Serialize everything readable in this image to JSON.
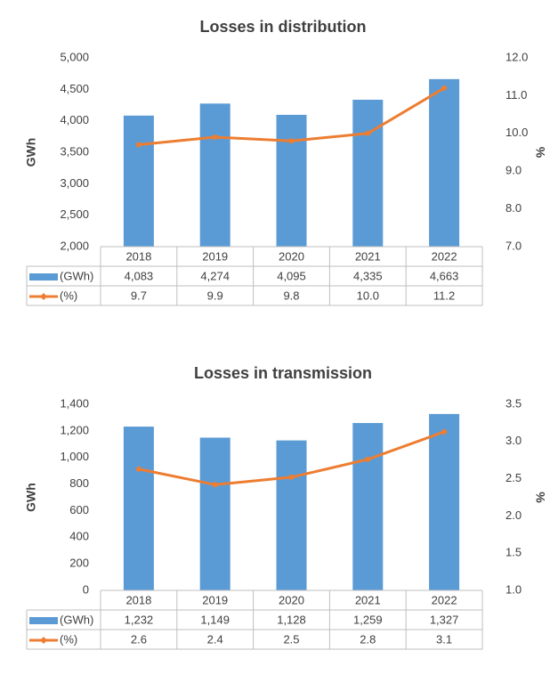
{
  "chart_data": [
    {
      "type": "combo",
      "title": "Losses in distribution",
      "y_label": "GWh",
      "y2_label": "%",
      "categories": [
        "2018",
        "2019",
        "2020",
        "2021",
        "2022"
      ],
      "series": [
        {
          "name": "(GWh)",
          "type": "bar",
          "color": "#5b9bd5",
          "values": [
            4083,
            4274,
            4095,
            4335,
            4663
          ],
          "value_labels": [
            "4,083",
            "4,274",
            "4,095",
            "4,335",
            "4,663"
          ]
        },
        {
          "name": "(%)",
          "type": "line",
          "axis": "y2",
          "color": "#ed7d31",
          "values": [
            9.7,
            9.9,
            9.8,
            10.0,
            11.2
          ],
          "value_labels": [
            "9.7",
            "9.9",
            "9.8",
            "10.0",
            "11.2"
          ]
        }
      ],
      "ylim": [
        2000,
        5000
      ],
      "yticks": [
        {
          "value": 2000,
          "label": "2,000"
        },
        {
          "value": 2500,
          "label": "2,500"
        },
        {
          "value": 3000,
          "label": "3,000"
        },
        {
          "value": 3500,
          "label": "3,500"
        },
        {
          "value": 4000,
          "label": "4,000"
        },
        {
          "value": 4500,
          "label": "4,500"
        },
        {
          "value": 5000,
          "label": "5,000"
        }
      ],
      "y2lim": [
        7,
        12
      ],
      "y2ticks": [
        {
          "value": 7,
          "label": "7.0"
        },
        {
          "value": 8,
          "label": "8.0"
        },
        {
          "value": 9,
          "label": "9.0"
        },
        {
          "value": 10,
          "label": "10.0"
        },
        {
          "value": 11,
          "label": "11.0"
        },
        {
          "value": 12,
          "label": "12.0"
        }
      ],
      "data_table": true
    },
    {
      "type": "combo",
      "title": "Losses in transmission",
      "y_label": "GWh",
      "y2_label": "%",
      "categories": [
        "2018",
        "2019",
        "2020",
        "2021",
        "2022"
      ],
      "series": [
        {
          "name": "(GWh)",
          "type": "bar",
          "color": "#5b9bd5",
          "values": [
            1232,
            1149,
            1128,
            1259,
            1327
          ],
          "value_labels": [
            "1,232",
            "1,149",
            "1,128",
            "1,259",
            "1,327"
          ]
        },
        {
          "name": "(%)",
          "type": "line",
          "axis": "y2",
          "color": "#ed7d31",
          "values": [
            2.63,
            2.42,
            2.52,
            2.76,
            3.13
          ],
          "value_labels": [
            "2.6",
            "2.4",
            "2.5",
            "2.8",
            "3.1"
          ]
        }
      ],
      "ylim": [
        0,
        1400
      ],
      "yticks": [
        0,
        200,
        400,
        600,
        800,
        {
          "value": 1000,
          "label": "1,000"
        },
        {
          "value": 1200,
          "label": "1,200"
        },
        {
          "value": 1400,
          "label": "1,400"
        }
      ],
      "y2lim": [
        1,
        3.5
      ],
      "y2ticks": [
        {
          "value": 1,
          "label": "1.0"
        },
        {
          "value": 1.5,
          "label": "1.5"
        },
        {
          "value": 2,
          "label": "2.0"
        },
        {
          "value": 2.5,
          "label": "2.5"
        },
        {
          "value": 3,
          "label": "3.0"
        },
        {
          "value": 3.5,
          "label": "3.5"
        }
      ],
      "data_table": true
    }
  ]
}
